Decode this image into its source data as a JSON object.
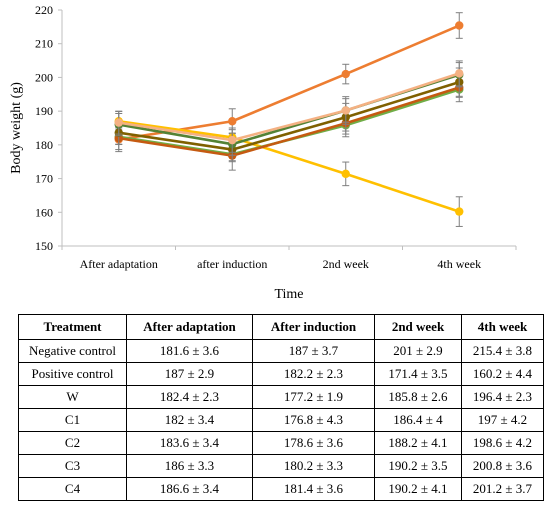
{
  "chart_data": {
    "type": "line",
    "xlabel": "Time",
    "ylabel": "Body weight (g)",
    "ylim": [
      150,
      220
    ],
    "yticks": [
      150,
      160,
      170,
      180,
      190,
      200,
      210,
      220
    ],
    "grid": false,
    "legend": "none",
    "categories": [
      "After adaptation",
      "after induction",
      "2nd week",
      "4th week"
    ],
    "series": [
      {
        "name": "Negative control",
        "color": "#ED7D31",
        "values": [
          181.6,
          187,
          201,
          215.4
        ],
        "errors": [
          3.6,
          3.7,
          2.9,
          3.8
        ]
      },
      {
        "name": "Positive control",
        "color": "#FFC000",
        "values": [
          187,
          182.2,
          171.4,
          160.2
        ],
        "errors": [
          2.9,
          2.3,
          3.5,
          4.4
        ]
      },
      {
        "name": "W",
        "color": "#70AD47",
        "values": [
          182.4,
          177.2,
          185.8,
          196.4
        ],
        "errors": [
          2.3,
          1.9,
          2.6,
          2.3
        ]
      },
      {
        "name": "C1",
        "color": "#C55A11",
        "values": [
          182,
          176.8,
          186.4,
          197
        ],
        "errors": [
          3.4,
          4.3,
          4,
          4.2
        ]
      },
      {
        "name": "C2",
        "color": "#7F6000",
        "values": [
          183.6,
          178.6,
          188.2,
          198.6
        ],
        "errors": [
          3.4,
          3.6,
          4.1,
          4.2
        ]
      },
      {
        "name": "C3",
        "color": "#548235",
        "values": [
          186,
          180.2,
          190.2,
          200.8
        ],
        "errors": [
          3.3,
          3.3,
          3.5,
          3.6
        ]
      },
      {
        "name": "C4",
        "color": "#F4B183",
        "values": [
          186.6,
          181.4,
          190.2,
          201.2
        ],
        "errors": [
          3.4,
          3.6,
          4.1,
          3.7
        ]
      }
    ]
  },
  "table": {
    "headers": [
      "Treatment",
      "After adaptation",
      "After induction",
      "2nd week",
      "4th week"
    ],
    "rows": [
      [
        "Negative control",
        "181.6 ± 3.6",
        "187 ± 3.7",
        "201 ± 2.9",
        "215.4 ± 3.8"
      ],
      [
        "Positive control",
        "187 ± 2.9",
        "182.2 ± 2.3",
        "171.4 ± 3.5",
        "160.2 ± 4.4"
      ],
      [
        "W",
        "182.4 ± 2.3",
        "177.2 ± 1.9",
        "185.8 ± 2.6",
        "196.4 ± 2.3"
      ],
      [
        "C1",
        "182 ± 3.4",
        "176.8 ± 4.3",
        "186.4 ± 4",
        "197 ± 4.2"
      ],
      [
        "C2",
        "183.6 ± 3.4",
        "178.6 ± 3.6",
        "188.2 ± 4.1",
        "198.6 ± 4.2"
      ],
      [
        "C3",
        "186 ± 3.3",
        "180.2 ± 3.3",
        "190.2 ± 3.5",
        "200.8 ± 3.6"
      ],
      [
        "C4",
        "186.6 ± 3.4",
        "181.4 ± 3.6",
        "190.2 ± 4.1",
        "201.2 ± 3.7"
      ]
    ]
  }
}
